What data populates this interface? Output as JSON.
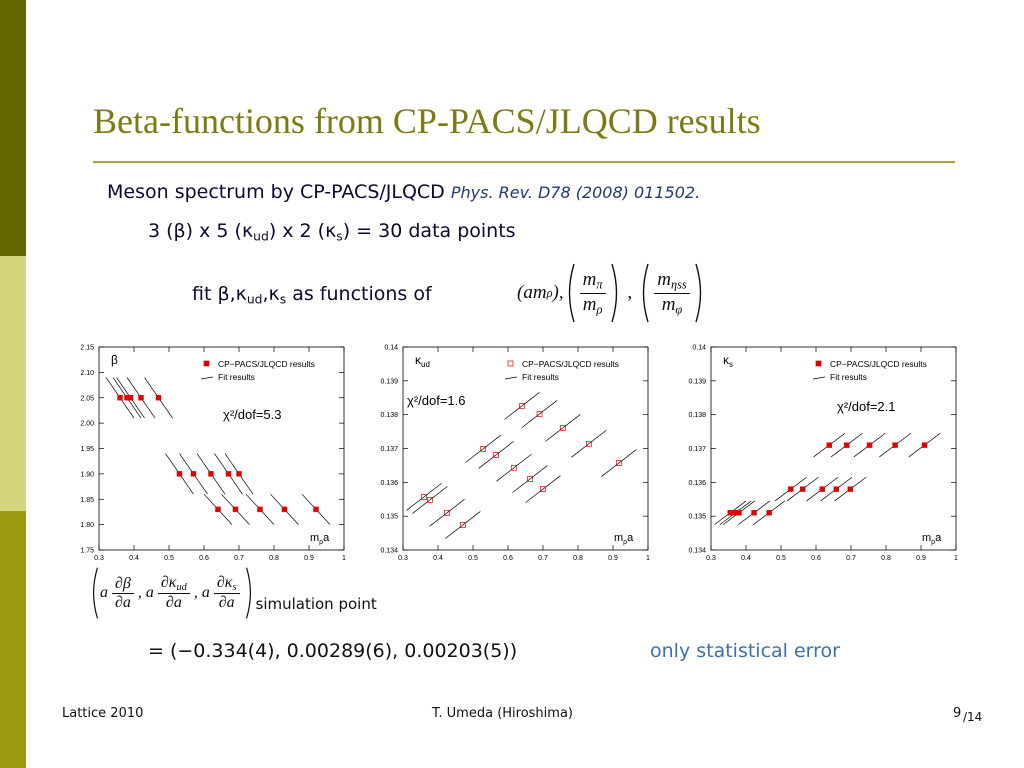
{
  "slide": {
    "title": "Beta-functions from CP-PACS/JLQCD results",
    "line1": {
      "text": "Meson spectrum by CP-PACS/JLQCD",
      "ref": "Phys. Rev. D78 (2008) 011502."
    },
    "line2": [
      "3 (β) x  5 (κ",
      "ud",
      ") x 2 (κ",
      "s",
      ") = 30 data points"
    ],
    "line3": [
      "fit β,κ",
      "ud",
      ",κ",
      "s",
      " as functions of"
    ],
    "formula1": {
      "lead": [
        "(am",
        "ρ",
        "),"
      ],
      "frac1": {
        "num": [
          "m",
          "π"
        ],
        "den": [
          "m",
          "ρ"
        ]
      },
      "sep": ",",
      "frac2": {
        "num": [
          "m",
          "ηss"
        ],
        "den": [
          "m",
          "φ"
        ]
      }
    },
    "formula2": {
      "terms": [
        {
          "coef": "a",
          "num": [
            "∂β"
          ],
          "den": "∂a",
          "sep": ","
        },
        {
          "coef": "a",
          "num": [
            "∂κ",
            "ud"
          ],
          "den": "∂a",
          "sep": ","
        },
        {
          "coef": "a",
          "num": [
            "∂κ",
            "s"
          ],
          "den": "∂a"
        }
      ],
      "subscript": "simulation point"
    },
    "equation": "= (−0.334(4),  0.00289(6),  0.00203(5))",
    "note": "only statistical error",
    "footer": {
      "left": "Lattice 2010",
      "center": "T. Umeda (Hiroshima)",
      "page": "9",
      "total": "/14"
    }
  },
  "chart_data": [
    {
      "type": "scatter",
      "y_label": {
        "main": "β"
      },
      "x_label": {
        "main": "m",
        "sub": "ρ",
        "tail": "a"
      },
      "xlim": [
        0.3,
        1
      ],
      "xticks": [
        0.3,
        0.4,
        0.5,
        0.6,
        0.7,
        0.8,
        0.9,
        1
      ],
      "ylim": [
        1.75,
        2.15
      ],
      "yticks": [
        1.75,
        {
          "value": 1.8,
          "label": "1.80"
        },
        1.85,
        {
          "value": 1.9,
          "label": "1.90"
        },
        1.95,
        {
          "value": 2,
          "label": "2.00"
        },
        2.05,
        {
          "value": 2.1,
          "label": "2.10"
        },
        2.15
      ],
      "annotation": "χ²/dof=5.3",
      "series": [
        {
          "name": "CP−PACS/JLQCD results",
          "color": "#e00000",
          "marker": "filled-square",
          "x": [
            0.36,
            0.38,
            0.39,
            0.42,
            0.47,
            0.53,
            0.57,
            0.62,
            0.67,
            0.7,
            0.64,
            0.69,
            0.76,
            0.83,
            0.92
          ],
          "values": [
            2.05,
            2.05,
            2.05,
            2.05,
            2.05,
            1.9,
            1.9,
            1.9,
            1.9,
            1.9,
            1.83,
            1.83,
            1.83,
            1.83,
            1.83
          ]
        },
        {
          "name": "Fit results",
          "color": "#000000",
          "segments": [
            {
              "x": [
                0.32,
                0.4
              ],
              "y": [
                2.09,
                2.01
              ]
            },
            {
              "x": [
                0.34,
                0.42
              ],
              "y": [
                2.09,
                2.01
              ]
            },
            {
              "x": [
                0.35,
                0.43
              ],
              "y": [
                2.09,
                2.01
              ]
            },
            {
              "x": [
                0.38,
                0.46
              ],
              "y": [
                2.09,
                2.01
              ]
            },
            {
              "x": [
                0.43,
                0.51
              ],
              "y": [
                2.09,
                2.01
              ]
            },
            {
              "x": [
                0.49,
                0.57
              ],
              "y": [
                1.94,
                1.86
              ]
            },
            {
              "x": [
                0.53,
                0.61
              ],
              "y": [
                1.94,
                1.86
              ]
            },
            {
              "x": [
                0.58,
                0.66
              ],
              "y": [
                1.94,
                1.86
              ]
            },
            {
              "x": [
                0.63,
                0.71
              ],
              "y": [
                1.94,
                1.86
              ]
            },
            {
              "x": [
                0.66,
                0.74
              ],
              "y": [
                1.94,
                1.86
              ]
            },
            {
              "x": [
                0.6,
                0.68
              ],
              "y": [
                1.86,
                1.8
              ]
            },
            {
              "x": [
                0.65,
                0.73
              ],
              "y": [
                1.86,
                1.8
              ]
            },
            {
              "x": [
                0.72,
                0.8
              ],
              "y": [
                1.86,
                1.8
              ]
            },
            {
              "x": [
                0.79,
                0.87
              ],
              "y": [
                1.86,
                1.8
              ]
            },
            {
              "x": [
                0.88,
                0.96
              ],
              "y": [
                1.86,
                1.8
              ]
            }
          ]
        }
      ]
    },
    {
      "type": "scatter",
      "y_label": {
        "main": "κ",
        "sub": "ud"
      },
      "x_label": {
        "main": "m",
        "sub": "ρ",
        "tail": "a"
      },
      "xlim": [
        0.3,
        1
      ],
      "xticks": [
        0.3,
        0.4,
        0.5,
        0.6,
        0.7,
        0.8,
        0.9,
        1
      ],
      "ylim": [
        0.134,
        0.14
      ],
      "yticks": [
        0.134,
        0.135,
        0.136,
        0.137,
        0.138,
        0.139,
        0.14
      ],
      "annotation": "χ²/dof=1.6",
      "series": [
        {
          "name": "CP−PACS/JLQCD results",
          "color": "#e00000",
          "marker": "open-square",
          "x": [
            0.36,
            0.377,
            0.426,
            0.471,
            0.529,
            0.566,
            0.617,
            0.663,
            0.7,
            0.64,
            0.69,
            0.757,
            0.831,
            0.917
          ],
          "values": [
            0.13557,
            0.13548,
            0.1351,
            0.13474,
            0.13699,
            0.13681,
            0.13643,
            0.1361,
            0.1358,
            0.13826,
            0.13802,
            0.13761,
            0.13714,
            0.13657
          ]
        },
        {
          "name": "Fit results",
          "color": "#000000",
          "segments": [
            {
              "x": [
                0.31,
                0.41
              ],
              "y": [
                0.13517,
                0.13597
              ]
            },
            {
              "x": [
                0.327,
                0.427
              ],
              "y": [
                0.13508,
                0.13588
              ]
            },
            {
              "x": [
                0.376,
                0.476
              ],
              "y": [
                0.1347,
                0.1355
              ]
            },
            {
              "x": [
                0.421,
                0.521
              ],
              "y": [
                0.13434,
                0.13514
              ]
            },
            {
              "x": [
                0.479,
                0.579
              ],
              "y": [
                0.13659,
                0.13739
              ]
            },
            {
              "x": [
                0.516,
                0.616
              ],
              "y": [
                0.13641,
                0.13721
              ]
            },
            {
              "x": [
                0.567,
                0.667
              ],
              "y": [
                0.13603,
                0.13683
              ]
            },
            {
              "x": [
                0.613,
                0.713
              ],
              "y": [
                0.1357,
                0.1365
              ]
            },
            {
              "x": [
                0.65,
                0.75
              ],
              "y": [
                0.1354,
                0.1362
              ]
            },
            {
              "x": [
                0.59,
                0.69
              ],
              "y": [
                0.13786,
                0.13866
              ]
            },
            {
              "x": [
                0.64,
                0.74
              ],
              "y": [
                0.13762,
                0.13842
              ]
            },
            {
              "x": [
                0.707,
                0.807
              ],
              "y": [
                0.13721,
                0.13801
              ]
            },
            {
              "x": [
                0.781,
                0.881
              ],
              "y": [
                0.13674,
                0.13754
              ]
            },
            {
              "x": [
                0.867,
                0.967
              ],
              "y": [
                0.13617,
                0.13697
              ]
            }
          ]
        }
      ]
    },
    {
      "type": "scatter",
      "y_label": {
        "main": "κ",
        "sub": "s"
      },
      "x_label": {
        "main": "m",
        "sub": "ρ",
        "tail": "a"
      },
      "xlim": [
        0.3,
        1
      ],
      "xticks": [
        0.3,
        0.4,
        0.5,
        0.6,
        0.7,
        0.8,
        0.9,
        1
      ],
      "ylim": [
        0.134,
        0.14
      ],
      "yticks": [
        0.134,
        0.135,
        0.136,
        0.137,
        0.138,
        0.139,
        0.14
      ],
      "annotation": "χ²/dof=2.1",
      "series": [
        {
          "name": "CP−PACS/JLQCD results",
          "color": "#e00000",
          "marker": "filled-square",
          "x": [
            0.355,
            0.37,
            0.38,
            0.423,
            0.466,
            0.528,
            0.562,
            0.618,
            0.658,
            0.698,
            0.638,
            0.688,
            0.753,
            0.826,
            0.91
          ],
          "values": [
            0.1351,
            0.1351,
            0.1351,
            0.1351,
            0.1351,
            0.1358,
            0.1358,
            0.1358,
            0.1358,
            0.1358,
            0.1371,
            0.1371,
            0.1371,
            0.1371,
            0.1371
          ]
        },
        {
          "name": "Fit results",
          "color": "#000000",
          "segments": [
            {
              "x": [
                0.31,
                0.4
              ],
              "y": [
                0.13475,
                0.13545
              ]
            },
            {
              "x": [
                0.325,
                0.415
              ],
              "y": [
                0.13475,
                0.13545
              ]
            },
            {
              "x": [
                0.335,
                0.425
              ],
              "y": [
                0.13475,
                0.13545
              ]
            },
            {
              "x": [
                0.378,
                0.468
              ],
              "y": [
                0.13475,
                0.13545
              ]
            },
            {
              "x": [
                0.421,
                0.511
              ],
              "y": [
                0.13475,
                0.13545
              ]
            },
            {
              "x": [
                0.483,
                0.573
              ],
              "y": [
                0.13545,
                0.13615
              ]
            },
            {
              "x": [
                0.517,
                0.607
              ],
              "y": [
                0.13545,
                0.13615
              ]
            },
            {
              "x": [
                0.573,
                0.663
              ],
              "y": [
                0.13545,
                0.13615
              ]
            },
            {
              "x": [
                0.613,
                0.703
              ],
              "y": [
                0.13545,
                0.13615
              ]
            },
            {
              "x": [
                0.653,
                0.743
              ],
              "y": [
                0.13545,
                0.13615
              ]
            },
            {
              "x": [
                0.593,
                0.683
              ],
              "y": [
                0.13675,
                0.13745
              ]
            },
            {
              "x": [
                0.643,
                0.733
              ],
              "y": [
                0.13675,
                0.13745
              ]
            },
            {
              "x": [
                0.708,
                0.798
              ],
              "y": [
                0.13675,
                0.13745
              ]
            },
            {
              "x": [
                0.781,
                0.871
              ],
              "y": [
                0.13675,
                0.13745
              ]
            },
            {
              "x": [
                0.865,
                0.955
              ],
              "y": [
                0.13675,
                0.13745
              ]
            }
          ]
        }
      ]
    }
  ]
}
